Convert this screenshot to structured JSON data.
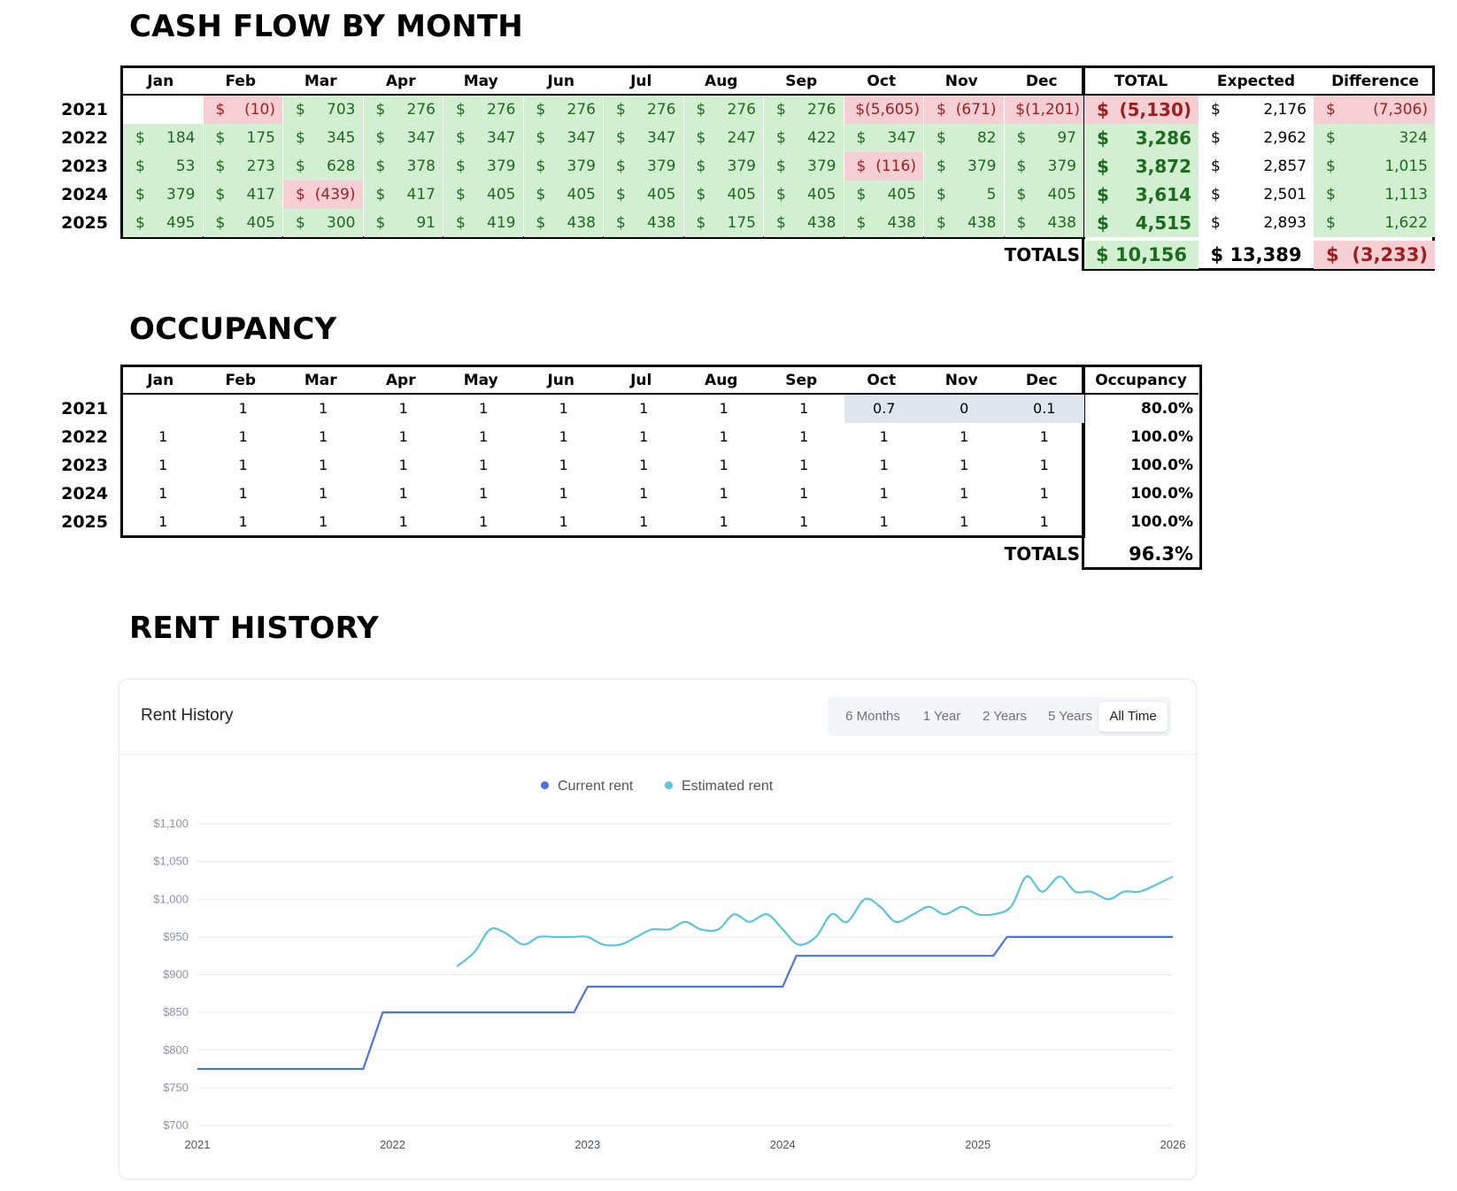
{
  "cash_flow": {
    "title": "CASH FLOW BY MONTH",
    "months": [
      "Jan",
      "Feb",
      "Mar",
      "Apr",
      "May",
      "Jun",
      "Jul",
      "Aug",
      "Sep",
      "Oct",
      "Nov",
      "Dec"
    ],
    "total_headers": [
      "TOTAL",
      "Expected",
      "Difference"
    ],
    "rows": [
      {
        "year": "2021",
        "cells": [
          "",
          "$|(10)",
          "$|703",
          "$|276",
          "$|276",
          "$|276",
          "$|276",
          "$|276",
          "$|276",
          "$(5,605)",
          "$|(671)",
          "$(1,201)"
        ],
        "signs": [
          "",
          "neg",
          "pos",
          "pos",
          "pos",
          "pos",
          "pos",
          "pos",
          "pos",
          "neg",
          "neg",
          "neg"
        ],
        "total": "(5,130)",
        "total_sign": "neg",
        "expected": "2,176",
        "difference": "(7,306)",
        "diff_sign": "neg"
      },
      {
        "year": "2022",
        "cells": [
          "$|184",
          "$|175",
          "$|345",
          "$|347",
          "$|347",
          "$|347",
          "$|347",
          "$|247",
          "$|422",
          "$|347",
          "$|82",
          "$|97"
        ],
        "signs": [
          "pos",
          "pos",
          "pos",
          "pos",
          "pos",
          "pos",
          "pos",
          "pos",
          "pos",
          "pos",
          "pos",
          "pos"
        ],
        "total": "3,286",
        "total_sign": "pos",
        "expected": "2,962",
        "difference": "324",
        "diff_sign": "pos"
      },
      {
        "year": "2023",
        "cells": [
          "$|53",
          "$|273",
          "$|628",
          "$|378",
          "$|379",
          "$|379",
          "$|379",
          "$|379",
          "$|379",
          "$|(116)",
          "$|379",
          "$|379"
        ],
        "signs": [
          "pos",
          "pos",
          "pos",
          "pos",
          "pos",
          "pos",
          "pos",
          "pos",
          "pos",
          "neg",
          "pos",
          "pos"
        ],
        "total": "3,872",
        "total_sign": "pos",
        "expected": "2,857",
        "difference": "1,015",
        "diff_sign": "pos"
      },
      {
        "year": "2024",
        "cells": [
          "$|379",
          "$|417",
          "$|(439)",
          "$|417",
          "$|405",
          "$|405",
          "$|405",
          "$|405",
          "$|405",
          "$|405",
          "$|5",
          "$|405"
        ],
        "signs": [
          "pos",
          "pos",
          "neg",
          "pos",
          "pos",
          "pos",
          "pos",
          "pos",
          "pos",
          "pos",
          "pos",
          "pos"
        ],
        "total": "3,614",
        "total_sign": "pos",
        "expected": "2,501",
        "difference": "1,113",
        "diff_sign": "pos"
      },
      {
        "year": "2025",
        "cells": [
          "$|495",
          "$|405",
          "$|300",
          "$|91",
          "$|419",
          "$|438",
          "$|438",
          "$|175",
          "$|438",
          "$|438",
          "$|438",
          "$|438"
        ],
        "signs": [
          "pos",
          "pos",
          "pos",
          "pos",
          "pos",
          "pos",
          "pos",
          "pos",
          "pos",
          "pos",
          "pos",
          "pos"
        ],
        "total": "4,515",
        "total_sign": "pos",
        "expected": "2,893",
        "difference": "1,622",
        "diff_sign": "pos"
      }
    ],
    "totals_label": "TOTALS",
    "totals_total": "$ 10,156",
    "totals_expected": "$ 13,389",
    "totals_difference": "(3,233)",
    "currency_symbol": "$",
    "colors": {
      "positive_bg": "#d3efd2",
      "positive_text": "#1c6b1e",
      "negative_bg": "#f6cfd4",
      "negative_text": "#9c1f1f"
    }
  },
  "occupancy": {
    "title": "OCCUPANCY",
    "header": "Occupancy",
    "rows": [
      {
        "year": "2021",
        "cells": [
          "",
          "1",
          "1",
          "1",
          "1",
          "1",
          "1",
          "1",
          "1",
          "0.7",
          "0",
          "0.1"
        ],
        "highlight": [
          9,
          10,
          11
        ],
        "pct": "80.0%"
      },
      {
        "year": "2022",
        "cells": [
          "1",
          "1",
          "1",
          "1",
          "1",
          "1",
          "1",
          "1",
          "1",
          "1",
          "1",
          "1"
        ],
        "highlight": [],
        "pct": "100.0%"
      },
      {
        "year": "2023",
        "cells": [
          "1",
          "1",
          "1",
          "1",
          "1",
          "1",
          "1",
          "1",
          "1",
          "1",
          "1",
          "1"
        ],
        "highlight": [],
        "pct": "100.0%"
      },
      {
        "year": "2024",
        "cells": [
          "1",
          "1",
          "1",
          "1",
          "1",
          "1",
          "1",
          "1",
          "1",
          "1",
          "1",
          "1"
        ],
        "highlight": [],
        "pct": "100.0%"
      },
      {
        "year": "2025",
        "cells": [
          "1",
          "1",
          "1",
          "1",
          "1",
          "1",
          "1",
          "1",
          "1",
          "1",
          "1",
          "1"
        ],
        "highlight": [],
        "pct": "100.0%"
      }
    ],
    "totals_label": "TOTALS",
    "totals_value": "96.3%"
  },
  "rent_history": {
    "section_title": "RENT HISTORY",
    "card_title": "Rent History",
    "ranges": [
      "6 Months",
      "1 Year",
      "2 Years",
      "5 Years",
      "All Time"
    ],
    "active_range": "All Time"
  },
  "chart_data": {
    "type": "line",
    "title": "Rent History",
    "xlabel": "",
    "ylabel": "",
    "x_ticks": [
      "2021",
      "2022",
      "2023",
      "2024",
      "2025",
      "2026"
    ],
    "y_ticks": [
      "$700",
      "$750",
      "$800",
      "$850",
      "$900",
      "$950",
      "$1,000",
      "$1,050",
      "$1,100"
    ],
    "ylim": [
      700,
      1100
    ],
    "xlim": [
      2021.0,
      2026.0
    ],
    "legend_position": "top-center",
    "series": [
      {
        "name": "Current rent",
        "color": "#4e73df",
        "points": [
          [
            2021.0,
            775
          ],
          [
            2021.85,
            775
          ],
          [
            2021.95,
            850
          ],
          [
            2022.93,
            850
          ],
          [
            2023.0,
            884
          ],
          [
            2024.0,
            884
          ],
          [
            2024.07,
            925
          ],
          [
            2025.08,
            925
          ],
          [
            2025.15,
            950
          ],
          [
            2026.0,
            950
          ]
        ]
      },
      {
        "name": "Estimated rent",
        "color": "#5bc4d6",
        "points": [
          [
            2022.33,
            911
          ],
          [
            2022.42,
            930
          ],
          [
            2022.5,
            960
          ],
          [
            2022.58,
            955
          ],
          [
            2022.67,
            940
          ],
          [
            2022.75,
            950
          ],
          [
            2022.83,
            950
          ],
          [
            2022.92,
            950
          ],
          [
            2023.0,
            950
          ],
          [
            2023.08,
            940
          ],
          [
            2023.17,
            940
          ],
          [
            2023.25,
            950
          ],
          [
            2023.33,
            960
          ],
          [
            2023.42,
            960
          ],
          [
            2023.5,
            970
          ],
          [
            2023.58,
            960
          ],
          [
            2023.67,
            960
          ],
          [
            2023.75,
            980
          ],
          [
            2023.83,
            970
          ],
          [
            2023.92,
            980
          ],
          [
            2024.0,
            960
          ],
          [
            2024.08,
            940
          ],
          [
            2024.17,
            950
          ],
          [
            2024.25,
            980
          ],
          [
            2024.33,
            970
          ],
          [
            2024.42,
            1000
          ],
          [
            2024.5,
            990
          ],
          [
            2024.58,
            970
          ],
          [
            2024.67,
            980
          ],
          [
            2024.75,
            990
          ],
          [
            2024.83,
            980
          ],
          [
            2024.92,
            990
          ],
          [
            2025.0,
            980
          ],
          [
            2025.08,
            980
          ],
          [
            2025.17,
            990
          ],
          [
            2025.25,
            1030
          ],
          [
            2025.33,
            1010
          ],
          [
            2025.42,
            1030
          ],
          [
            2025.5,
            1010
          ],
          [
            2025.58,
            1010
          ],
          [
            2025.67,
            1000
          ],
          [
            2025.75,
            1010
          ],
          [
            2025.83,
            1010
          ],
          [
            2025.92,
            1020
          ],
          [
            2026.0,
            1030
          ]
        ]
      }
    ]
  }
}
